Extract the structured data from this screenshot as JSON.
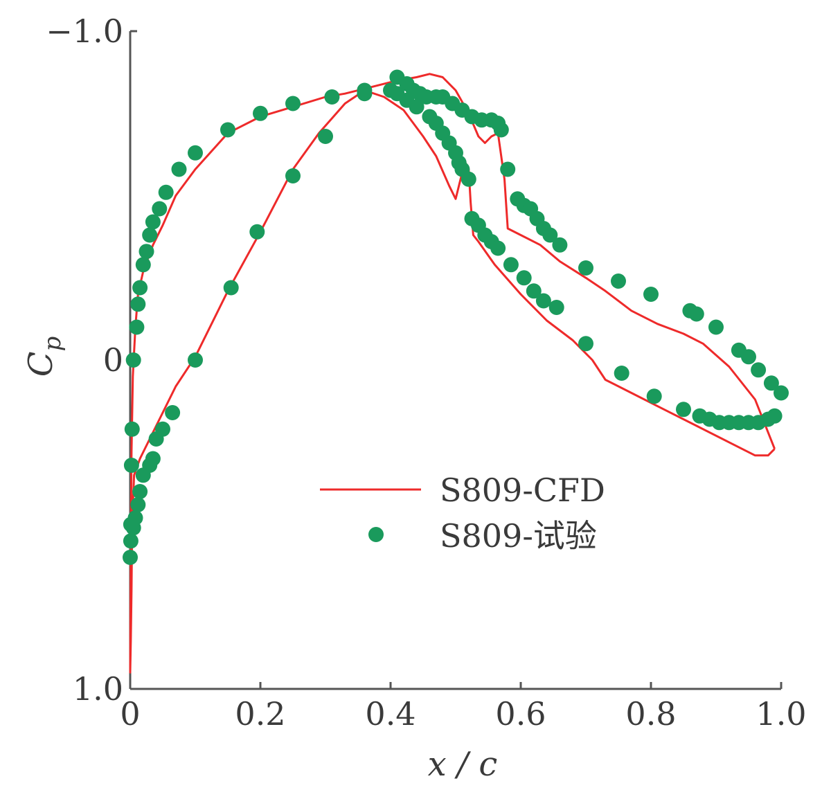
{
  "chart_data": {
    "type": "line",
    "xlabel": "x / c",
    "ylabel": "Cp",
    "ylabel_main": "C",
    "ylabel_sub": "p",
    "xlim": [
      0,
      1.0
    ],
    "ylim": [
      -1.0,
      1.0
    ],
    "y_inverted": true,
    "grid": false,
    "legend_position": "center-right",
    "x_ticks": [
      0,
      0.2,
      0.4,
      0.6,
      0.8,
      1.0
    ],
    "x_tick_labels": [
      "0",
      "0.2",
      "0.4",
      "0.6",
      "0.8",
      "1.0"
    ],
    "y_ticks": [
      -1.0,
      0,
      1.0
    ],
    "y_tick_labels": [
      "−1.0",
      "0",
      "1.0"
    ],
    "colors": {
      "cfd": "#ee2a2a",
      "experiment": "#1a9a5c",
      "axis": "#555555"
    },
    "series": [
      {
        "name": "S809-CFD",
        "style": "line",
        "x": [
          0.99,
          0.96,
          0.92,
          0.88,
          0.85,
          0.81,
          0.77,
          0.73,
          0.7,
          0.66,
          0.63,
          0.6,
          0.58,
          0.575,
          0.565,
          0.555,
          0.545,
          0.535,
          0.52,
          0.5,
          0.48,
          0.46,
          0.44,
          0.41,
          0.37,
          0.33,
          0.3,
          0.25,
          0.2,
          0.15,
          0.1,
          0.07,
          0.05,
          0.035,
          0.02,
          0.012,
          0.008,
          0.004,
          0.002,
          0.001,
          0.0,
          0.001,
          0.002,
          0.003,
          0.006,
          0.015,
          0.03,
          0.05,
          0.07,
          0.1,
          0.15,
          0.2,
          0.25,
          0.29,
          0.33,
          0.36,
          0.39,
          0.42,
          0.45,
          0.47,
          0.49,
          0.5,
          0.505,
          0.51,
          0.515,
          0.52,
          0.523,
          0.527,
          0.535,
          0.56,
          0.6,
          0.64,
          0.68,
          0.71,
          0.73,
          0.77,
          0.82,
          0.87,
          0.92,
          0.96,
          0.98,
          0.99
        ],
        "y": [
          0.27,
          0.12,
          0.02,
          -0.05,
          -0.08,
          -0.11,
          -0.15,
          -0.21,
          -0.25,
          -0.3,
          -0.35,
          -0.38,
          -0.4,
          -0.55,
          -0.69,
          -0.68,
          -0.66,
          -0.68,
          -0.75,
          -0.82,
          -0.86,
          -0.87,
          -0.86,
          -0.85,
          -0.83,
          -0.81,
          -0.8,
          -0.77,
          -0.74,
          -0.69,
          -0.58,
          -0.5,
          -0.41,
          -0.35,
          -0.27,
          -0.2,
          -0.1,
          0.05,
          0.28,
          0.55,
          0.95,
          0.85,
          0.7,
          0.5,
          0.35,
          0.3,
          0.24,
          0.16,
          0.08,
          -0.01,
          -0.21,
          -0.39,
          -0.58,
          -0.69,
          -0.78,
          -0.82,
          -0.8,
          -0.76,
          -0.68,
          -0.62,
          -0.53,
          -0.49,
          -0.53,
          -0.57,
          -0.6,
          -0.58,
          -0.48,
          -0.38,
          -0.36,
          -0.29,
          -0.2,
          -0.12,
          -0.06,
          0.0,
          0.06,
          0.1,
          0.15,
          0.2,
          0.25,
          0.29,
          0.29,
          0.27
        ]
      },
      {
        "name": "S809-试验",
        "style": "markers",
        "x": [
          0.41,
          0.425,
          0.435,
          0.445,
          0.455,
          0.47,
          0.48,
          0.495,
          0.51,
          0.525,
          0.54,
          0.555,
          0.565,
          0.57,
          0.58,
          0.595,
          0.605,
          0.615,
          0.625,
          0.635,
          0.645,
          0.66,
          0.7,
          0.75,
          0.8,
          0.86,
          0.87,
          0.9,
          0.935,
          0.95,
          0.965,
          0.985,
          1.0,
          0.4,
          0.36,
          0.31,
          0.25,
          0.2,
          0.15,
          0.1,
          0.075,
          0.055,
          0.045,
          0.035,
          0.03,
          0.025,
          0.02,
          0.015,
          0.012,
          0.01,
          0.005,
          0.003,
          0.002,
          0.001,
          0.0,
          0.36,
          0.3,
          0.25,
          0.195,
          0.155,
          0.1,
          0.065,
          0.05,
          0.04,
          0.035,
          0.03,
          0.02,
          0.015,
          0.012,
          0.008,
          0.005,
          0.001,
          0.41,
          0.425,
          0.44,
          0.46,
          0.47,
          0.48,
          0.49,
          0.5,
          0.505,
          0.51,
          0.52,
          0.525,
          0.535,
          0.545,
          0.555,
          0.565,
          0.585,
          0.605,
          0.62,
          0.635,
          0.655,
          0.7,
          0.755,
          0.805,
          0.85,
          0.875,
          0.89,
          0.905,
          0.92,
          0.935,
          0.95,
          0.965,
          0.98,
          0.99
        ],
        "y": [
          -0.86,
          -0.84,
          -0.82,
          -0.81,
          -0.8,
          -0.8,
          -0.8,
          -0.78,
          -0.76,
          -0.74,
          -0.73,
          -0.73,
          -0.72,
          -0.7,
          -0.58,
          -0.49,
          -0.47,
          -0.46,
          -0.43,
          -0.4,
          -0.38,
          -0.35,
          -0.28,
          -0.24,
          -0.2,
          -0.15,
          -0.14,
          -0.1,
          -0.03,
          -0.01,
          0.03,
          0.07,
          0.1,
          -0.82,
          -0.81,
          -0.8,
          -0.78,
          -0.75,
          -0.7,
          -0.63,
          -0.58,
          -0.51,
          -0.46,
          -0.42,
          -0.38,
          -0.33,
          -0.29,
          -0.22,
          -0.17,
          -0.1,
          0.0,
          0.21,
          0.32,
          0.5,
          0.6,
          -0.82,
          -0.68,
          -0.56,
          -0.39,
          -0.22,
          0.0,
          0.16,
          0.21,
          0.24,
          0.3,
          0.32,
          0.35,
          0.4,
          0.44,
          0.48,
          0.51,
          0.55,
          -0.81,
          -0.79,
          -0.77,
          -0.74,
          -0.72,
          -0.69,
          -0.66,
          -0.63,
          -0.6,
          -0.58,
          -0.55,
          -0.43,
          -0.41,
          -0.38,
          -0.36,
          -0.34,
          -0.29,
          -0.25,
          -0.21,
          -0.18,
          -0.16,
          -0.05,
          0.04,
          0.11,
          0.15,
          0.17,
          0.18,
          0.19,
          0.19,
          0.19,
          0.19,
          0.19,
          0.18,
          0.17
        ]
      }
    ]
  }
}
